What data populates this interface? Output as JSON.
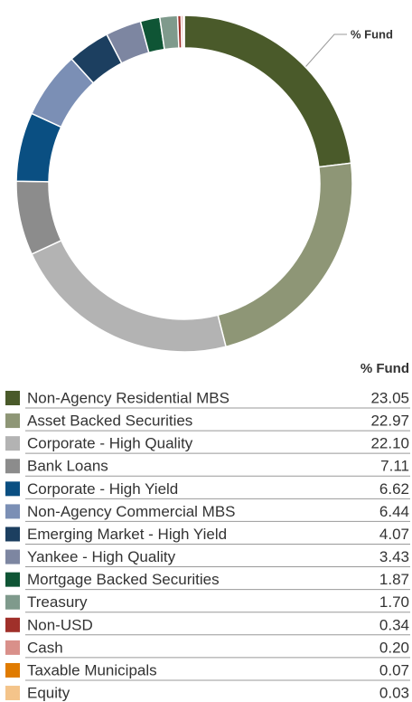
{
  "chart_data": {
    "type": "donut",
    "annotation": "% Fund",
    "column_header": "% Fund",
    "categories": [
      "Non-Agency Residential MBS",
      "Asset Backed Securities",
      "Corporate - High Quality",
      "Bank Loans",
      "Corporate - High Yield",
      "Non-Agency Commercial MBS",
      "Emerging Market - High Yield",
      "Yankee - High Quality",
      "Mortgage Backed Securities",
      "Treasury",
      "Non-USD",
      "Cash",
      "Taxable Municipals",
      "Equity"
    ],
    "values": [
      23.05,
      22.97,
      22.1,
      7.11,
      6.62,
      6.44,
      4.07,
      3.43,
      1.87,
      1.7,
      0.34,
      0.2,
      0.07,
      0.03
    ],
    "value_labels": [
      "23.05",
      "22.97",
      "22.10",
      "7.11",
      "6.62",
      "6.44",
      "4.07",
      "3.43",
      "1.87",
      "1.70",
      "0.34",
      "0.20",
      "0.07",
      "0.03"
    ],
    "colors": [
      "#4a5a2a",
      "#8e9676",
      "#b3b3b3",
      "#8c8c8c",
      "#0a4f82",
      "#7b8fb5",
      "#1c3f60",
      "#7d86a1",
      "#0f5535",
      "#7f9a8c",
      "#a0302a",
      "#d9908a",
      "#e07b00",
      "#f4c48a"
    ]
  }
}
